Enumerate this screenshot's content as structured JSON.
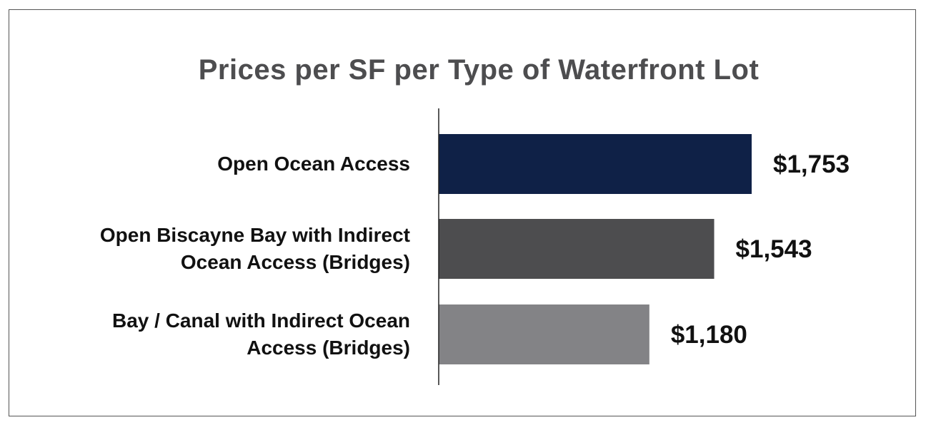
{
  "chart_data": {
    "type": "bar",
    "orientation": "horizontal",
    "title": "Prices per SF per Type of Waterfront Lot",
    "xlabel": "",
    "ylabel": "",
    "categories": [
      "Open Ocean Access",
      "Open Biscayne Bay with Indirect Ocean Access (Bridges)",
      "Bay / Canal with Indirect Ocean Access (Bridges)"
    ],
    "category_lines": [
      [
        "Open Ocean Access"
      ],
      [
        "Open Biscayne Bay with Indirect",
        "Ocean Access (Bridges)"
      ],
      [
        "Bay / Canal with Indirect Ocean",
        "Access (Bridges)"
      ]
    ],
    "values": [
      1753,
      1543,
      1180
    ],
    "value_labels": [
      "$1,753",
      "$1,543",
      "$1,180"
    ],
    "bar_colors": [
      "#0f2147",
      "#4d4d4f",
      "#838386"
    ],
    "xlim": [
      0,
      2500
    ],
    "grid": false,
    "legend": "none"
  },
  "colors": {
    "title": "#4d4d4f",
    "text": "#111111",
    "axis": "#222222",
    "frame": "#555555"
  }
}
